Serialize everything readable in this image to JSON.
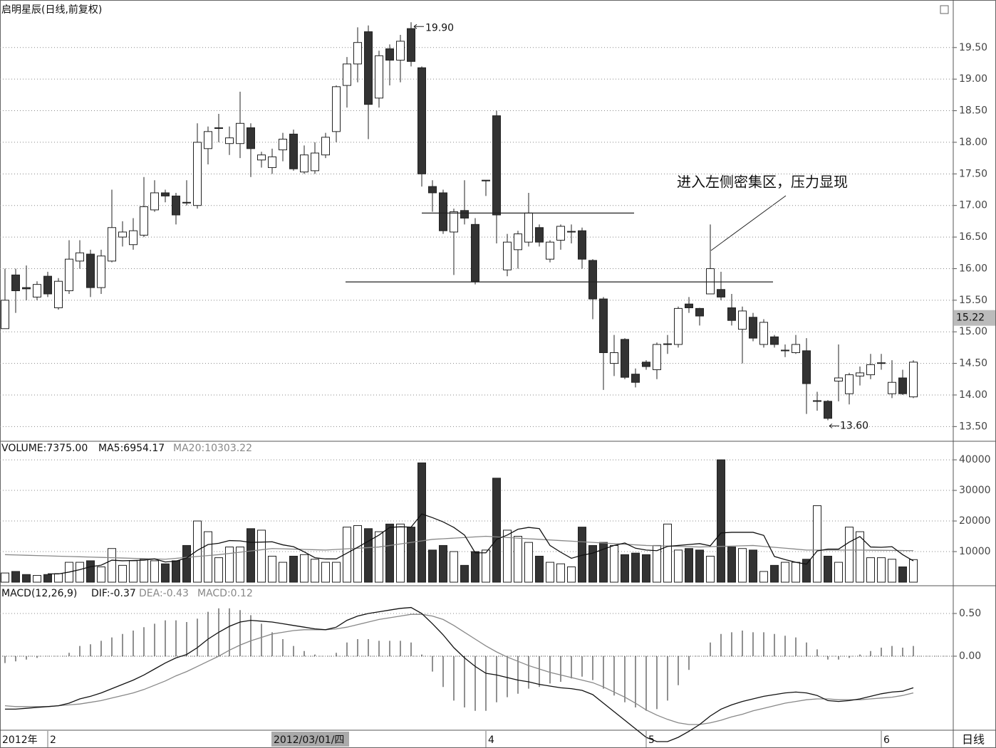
{
  "chart_data": [
    {
      "type": "candlestick",
      "title": "启明星辰(日线,前复权)",
      "categories": [
        null,
        null,
        null,
        null,
        "2",
        null,
        null,
        null,
        null,
        null,
        null,
        null,
        null,
        null,
        null,
        null,
        null,
        null,
        null,
        null,
        null,
        null,
        null,
        null,
        null,
        null,
        null,
        null,
        null,
        null,
        null,
        null,
        null,
        null,
        null,
        null,
        null,
        null,
        null,
        null,
        null,
        null,
        null,
        null,
        null,
        "4",
        null,
        null,
        null,
        null,
        null,
        null,
        null,
        null,
        null,
        null,
        null,
        null,
        null,
        null,
        "5",
        null,
        null,
        null,
        null,
        null,
        null,
        null,
        null,
        null,
        null,
        null,
        null,
        null,
        null,
        null,
        null,
        null,
        null,
        null,
        null,
        null,
        "6",
        null,
        null,
        null
      ],
      "open": [
        15.05,
        15.9,
        15.7,
        15.55,
        15.88,
        15.38,
        15.65,
        16.12,
        16.23,
        15.7,
        16.12,
        16.5,
        16.38,
        16.53,
        16.93,
        17.2,
        17.15,
        17.05,
        17.0,
        17.9,
        18.22,
        17.98,
        17.98,
        18.23,
        17.72,
        17.6,
        17.88,
        18.13,
        17.53,
        17.55,
        17.8,
        18.17,
        18.9,
        19.24,
        19.75,
        18.7,
        19.48,
        19.3,
        19.8,
        19.18,
        17.3,
        17.2,
        16.58,
        16.92,
        16.7,
        17.4,
        18.42,
        15.98,
        16.3,
        16.42,
        16.65,
        16.15,
        16.45,
        16.58,
        16.6,
        16.13,
        15.52,
        14.5,
        14.88,
        14.33,
        14.52,
        14.4,
        14.8,
        14.8,
        15.44,
        15.37,
        15.6,
        15.67,
        15.38,
        15.04,
        15.23,
        14.8,
        14.92,
        14.7,
        14.67,
        14.7,
        13.9,
        13.9,
        14.22,
        14.02,
        14.3,
        14.32,
        14.5,
        14.02,
        14.27,
        13.97
      ],
      "high": [
        16.0,
        16.0,
        16.05,
        15.8,
        15.95,
        15.85,
        16.45,
        16.45,
        16.3,
        16.3,
        17.25,
        16.75,
        16.8,
        17.45,
        17.4,
        17.25,
        17.2,
        17.4,
        18.3,
        18.25,
        18.45,
        18.25,
        18.8,
        18.3,
        17.85,
        17.9,
        18.15,
        18.2,
        17.95,
        18.0,
        18.15,
        18.9,
        19.35,
        19.82,
        19.85,
        19.45,
        19.55,
        19.7,
        19.9,
        19.2,
        17.4,
        17.25,
        16.95,
        17.4,
        16.8,
        17.4,
        18.5,
        16.55,
        16.6,
        17.2,
        16.7,
        16.45,
        16.7,
        16.7,
        16.65,
        16.15,
        15.55,
        14.95,
        14.9,
        14.42,
        14.55,
        14.83,
        14.95,
        15.4,
        15.55,
        15.38,
        16.7,
        15.95,
        15.6,
        15.4,
        15.3,
        15.2,
        14.95,
        14.8,
        14.95,
        14.9,
        14.05,
        13.92,
        14.8,
        14.35,
        14.45,
        14.65,
        14.65,
        14.55,
        14.4,
        14.55
      ],
      "low": [
        15.05,
        15.3,
        15.5,
        15.5,
        15.55,
        15.35,
        15.6,
        16.0,
        15.55,
        15.6,
        16.1,
        16.35,
        16.3,
        16.5,
        16.9,
        17.05,
        16.7,
        17.0,
        16.95,
        17.65,
        18.0,
        17.8,
        17.75,
        17.45,
        17.6,
        17.5,
        17.7,
        17.55,
        17.5,
        17.5,
        17.75,
        18.0,
        18.55,
        18.95,
        18.05,
        18.55,
        18.9,
        18.95,
        19.2,
        17.3,
        16.9,
        16.55,
        15.9,
        16.7,
        15.75,
        17.15,
        16.4,
        15.88,
        16.0,
        16.35,
        16.35,
        16.1,
        16.3,
        16.4,
        16.0,
        15.2,
        14.08,
        14.3,
        14.25,
        14.12,
        14.4,
        14.25,
        14.65,
        14.75,
        15.3,
        15.1,
        15.6,
        15.5,
        15.1,
        14.5,
        14.85,
        14.75,
        14.75,
        14.6,
        14.65,
        13.7,
        13.75,
        13.6,
        13.9,
        13.85,
        14.15,
        14.25,
        14.4,
        13.95,
        14.0,
        13.95
      ],
      "close": [
        15.5,
        15.65,
        15.68,
        15.75,
        15.6,
        15.8,
        16.15,
        16.25,
        15.7,
        16.2,
        16.65,
        16.58,
        16.6,
        16.98,
        17.2,
        17.15,
        16.85,
        17.04,
        18.0,
        18.17,
        18.23,
        18.07,
        18.3,
        17.9,
        17.8,
        17.77,
        18.05,
        17.58,
        17.8,
        17.83,
        18.08,
        18.88,
        19.24,
        19.58,
        18.6,
        19.37,
        19.3,
        19.6,
        19.28,
        17.5,
        17.2,
        16.6,
        16.9,
        16.8,
        15.8,
        17.4,
        16.85,
        16.42,
        16.55,
        16.88,
        16.42,
        16.42,
        16.67,
        16.59,
        16.15,
        15.52,
        14.67,
        14.67,
        14.28,
        14.2,
        14.45,
        14.8,
        14.81,
        15.37,
        15.38,
        15.25,
        16.0,
        15.55,
        15.18,
        15.33,
        14.9,
        15.15,
        14.8,
        14.71,
        14.8,
        14.18,
        13.91,
        13.63,
        14.27,
        14.32,
        14.35,
        14.48,
        14.51,
        14.2,
        14.02,
        14.52
      ],
      "up_color": "#ffffff",
      "down_color": "#333333",
      "ylim": [
        13.29,
        20.23
      ],
      "yticks": [
        {
          "value": 13.5,
          "label": "13.50"
        },
        {
          "value": 14,
          "label": "14.00"
        },
        {
          "value": 14.5,
          "label": "14.50"
        },
        {
          "value": 15,
          "label": "15.00"
        },
        {
          "value": 15.5,
          "label": "15.50"
        },
        {
          "value": 16,
          "label": "16.00"
        },
        {
          "value": 16.5,
          "label": "16.50"
        },
        {
          "value": 17,
          "label": "17.00"
        },
        {
          "value": 17.5,
          "label": "17.50"
        },
        {
          "value": 18,
          "label": "18.00"
        },
        {
          "value": 18.5,
          "label": "18.50"
        },
        {
          "value": 19,
          "label": "19.00"
        },
        {
          "value": 19.5,
          "label": "19.50"
        }
      ],
      "grid": true,
      "max_label": "19.90",
      "min_label": "13.60",
      "cursor_price": {
        "value": 15.22,
        "label": "15.22"
      },
      "annotation": "进入左侧密集区，压力显现",
      "hlines": [
        16.88,
        15.79
      ]
    },
    {
      "type": "volume",
      "title": "VOLUME:7375.00",
      "ma5_label": "MA5:6954.17",
      "ma20_label": "MA20:10303.22",
      "values": [
        3000,
        3500,
        2500,
        2200,
        2500,
        2800,
        6500,
        6500,
        7000,
        5000,
        11000,
        5500,
        7000,
        7500,
        7000,
        6000,
        7000,
        12000,
        20000,
        16500,
        8000,
        11500,
        11500,
        17500,
        17000,
        8500,
        6500,
        8500,
        9000,
        7500,
        6500,
        6500,
        18000,
        18500,
        17500,
        16500,
        19000,
        19000,
        18000,
        39000,
        10500,
        12000,
        10000,
        5500,
        10000,
        10500,
        34000,
        17000,
        15000,
        13000,
        8500,
        6500,
        6000,
        5000,
        18000,
        12000,
        13000,
        12000,
        9000,
        9500,
        9000,
        12000,
        19000,
        10500,
        11000,
        10500,
        8500,
        40000,
        11500,
        11000,
        10500,
        3500,
        5500,
        6500,
        6500,
        7500,
        25000,
        8500,
        6500,
        18000,
        16500,
        8000,
        8000,
        7500,
        5000,
        7375
      ],
      "ma5": [
        null,
        null,
        null,
        null,
        2740,
        2700,
        3300,
        4100,
        5060,
        5560,
        7200,
        7000,
        7100,
        7200,
        7600,
        6600,
        6900,
        7900,
        10400,
        12300,
        12700,
        13600,
        13500,
        13000,
        13100,
        13200,
        12200,
        11600,
        9900,
        8000,
        7600,
        7600,
        9500,
        11400,
        13400,
        15400,
        17900,
        18100,
        18000,
        22300,
        21100,
        19700,
        17900,
        15400,
        9600,
        9600,
        14000,
        15400,
        17300,
        17900,
        17500,
        12000,
        9800,
        7800,
        8800,
        9500,
        10800,
        12000,
        12800,
        11100,
        10500,
        10300,
        11700,
        12000,
        12300,
        12600,
        11900,
        16100,
        16300,
        16300,
        16300,
        15300,
        8400,
        7400,
        6500,
        5900,
        10200,
        10800,
        10800,
        13100,
        14900,
        11500,
        11400,
        11600,
        9000,
        6954.17
      ],
      "ma20": [
        9000,
        8900,
        8800,
        8700,
        8600,
        8500,
        8400,
        8300,
        8200,
        8100,
        8000,
        7900,
        7800,
        7700,
        7600,
        7500,
        7800,
        8100,
        8400,
        8700,
        9000,
        9400,
        9800,
        10200,
        10600,
        11000,
        10900,
        10800,
        10700,
        10600,
        10500,
        10700,
        10900,
        11100,
        11300,
        11500,
        12000,
        12500,
        13000,
        13500,
        14000,
        14200,
        14400,
        14600,
        14800,
        15000,
        14800,
        14600,
        14400,
        14200,
        14000,
        13800,
        13600,
        13400,
        13200,
        13000,
        12800,
        12600,
        12400,
        12200,
        12000,
        11900,
        11800,
        11700,
        11600,
        11500,
        11600,
        11700,
        11800,
        11900,
        12000,
        11700,
        11400,
        11100,
        10800,
        10500,
        10500,
        10500,
        10500,
        10500,
        10500,
        10460,
        10420,
        10380,
        10340,
        10303.22
      ],
      "ylim": [
        0,
        45600
      ],
      "yticks": [
        10000,
        20000,
        30000,
        40000
      ],
      "grid": true
    },
    {
      "type": "macd",
      "title": "MACD(12,26,9)",
      "dif_label": "DIF:-0.37",
      "dea_label": "DEA:-0.43",
      "macd_label": "MACD:0.12",
      "dif": [
        -0.62,
        -0.62,
        -0.61,
        -0.6,
        -0.59,
        -0.58,
        -0.55,
        -0.5,
        -0.47,
        -0.43,
        -0.38,
        -0.33,
        -0.28,
        -0.22,
        -0.15,
        -0.08,
        -0.02,
        0.02,
        0.1,
        0.2,
        0.28,
        0.35,
        0.4,
        0.42,
        0.41,
        0.4,
        0.38,
        0.36,
        0.34,
        0.32,
        0.31,
        0.34,
        0.42,
        0.47,
        0.5,
        0.52,
        0.54,
        0.56,
        0.57,
        0.5,
        0.38,
        0.25,
        0.1,
        -0.02,
        -0.12,
        -0.2,
        -0.22,
        -0.25,
        -0.28,
        -0.3,
        -0.33,
        -0.35,
        -0.37,
        -0.38,
        -0.4,
        -0.45,
        -0.55,
        -0.65,
        -0.75,
        -0.85,
        -0.95,
        -1.0,
        -1.0,
        -0.95,
        -0.88,
        -0.8,
        -0.7,
        -0.62,
        -0.57,
        -0.53,
        -0.5,
        -0.47,
        -0.45,
        -0.43,
        -0.42,
        -0.43,
        -0.46,
        -0.52,
        -0.53,
        -0.52,
        -0.5,
        -0.47,
        -0.44,
        -0.42,
        -0.41,
        -0.37
      ],
      "dea": [
        -0.58,
        -0.59,
        -0.59,
        -0.59,
        -0.59,
        -0.58,
        -0.57,
        -0.56,
        -0.54,
        -0.52,
        -0.49,
        -0.46,
        -0.43,
        -0.39,
        -0.34,
        -0.29,
        -0.23,
        -0.18,
        -0.12,
        -0.06,
        0.0,
        0.07,
        0.13,
        0.18,
        0.22,
        0.26,
        0.28,
        0.3,
        0.31,
        0.31,
        0.31,
        0.32,
        0.34,
        0.37,
        0.4,
        0.43,
        0.45,
        0.47,
        0.49,
        0.49,
        0.47,
        0.43,
        0.36,
        0.28,
        0.2,
        0.12,
        0.05,
        -0.01,
        -0.06,
        -0.11,
        -0.15,
        -0.19,
        -0.22,
        -0.25,
        -0.28,
        -0.31,
        -0.36,
        -0.42,
        -0.48,
        -0.55,
        -0.63,
        -0.69,
        -0.74,
        -0.78,
        -0.8,
        -0.8,
        -0.78,
        -0.75,
        -0.71,
        -0.68,
        -0.64,
        -0.61,
        -0.58,
        -0.55,
        -0.53,
        -0.51,
        -0.5,
        -0.5,
        -0.51,
        -0.51,
        -0.51,
        -0.5,
        -0.49,
        -0.48,
        -0.46,
        -0.43
      ],
      "macd": [
        -0.08,
        -0.06,
        -0.04,
        -0.02,
        0.0,
        0.0,
        0.04,
        0.12,
        0.14,
        0.18,
        0.22,
        0.26,
        0.3,
        0.34,
        0.38,
        0.42,
        0.42,
        0.4,
        0.44,
        0.52,
        0.56,
        0.56,
        0.54,
        0.48,
        0.38,
        0.28,
        0.2,
        0.12,
        0.06,
        0.02,
        0.0,
        0.04,
        0.16,
        0.2,
        0.2,
        0.18,
        0.18,
        0.18,
        0.16,
        0.02,
        -0.18,
        -0.36,
        -0.52,
        -0.6,
        -0.64,
        -0.64,
        -0.54,
        -0.48,
        -0.44,
        -0.38,
        -0.36,
        -0.32,
        -0.3,
        -0.26,
        -0.24,
        -0.28,
        -0.38,
        -0.46,
        -0.54,
        -0.6,
        -0.64,
        -0.62,
        -0.52,
        -0.34,
        -0.16,
        0.0,
        0.16,
        0.26,
        0.28,
        0.3,
        0.28,
        0.28,
        0.26,
        0.24,
        0.22,
        0.16,
        0.08,
        -0.04,
        -0.04,
        -0.02,
        0.02,
        0.06,
        0.1,
        0.12,
        0.1,
        0.12
      ],
      "ylim": [
        -0.85,
        0.8
      ],
      "yticks": [
        {
          "value": 0,
          "label": "0.00"
        },
        {
          "value": 0.5,
          "label": "0.50"
        }
      ],
      "grid": true
    }
  ],
  "x_axis": {
    "year_label": "2012年",
    "cursor_date": "2012/03/01/四",
    "period_label": "日线"
  }
}
